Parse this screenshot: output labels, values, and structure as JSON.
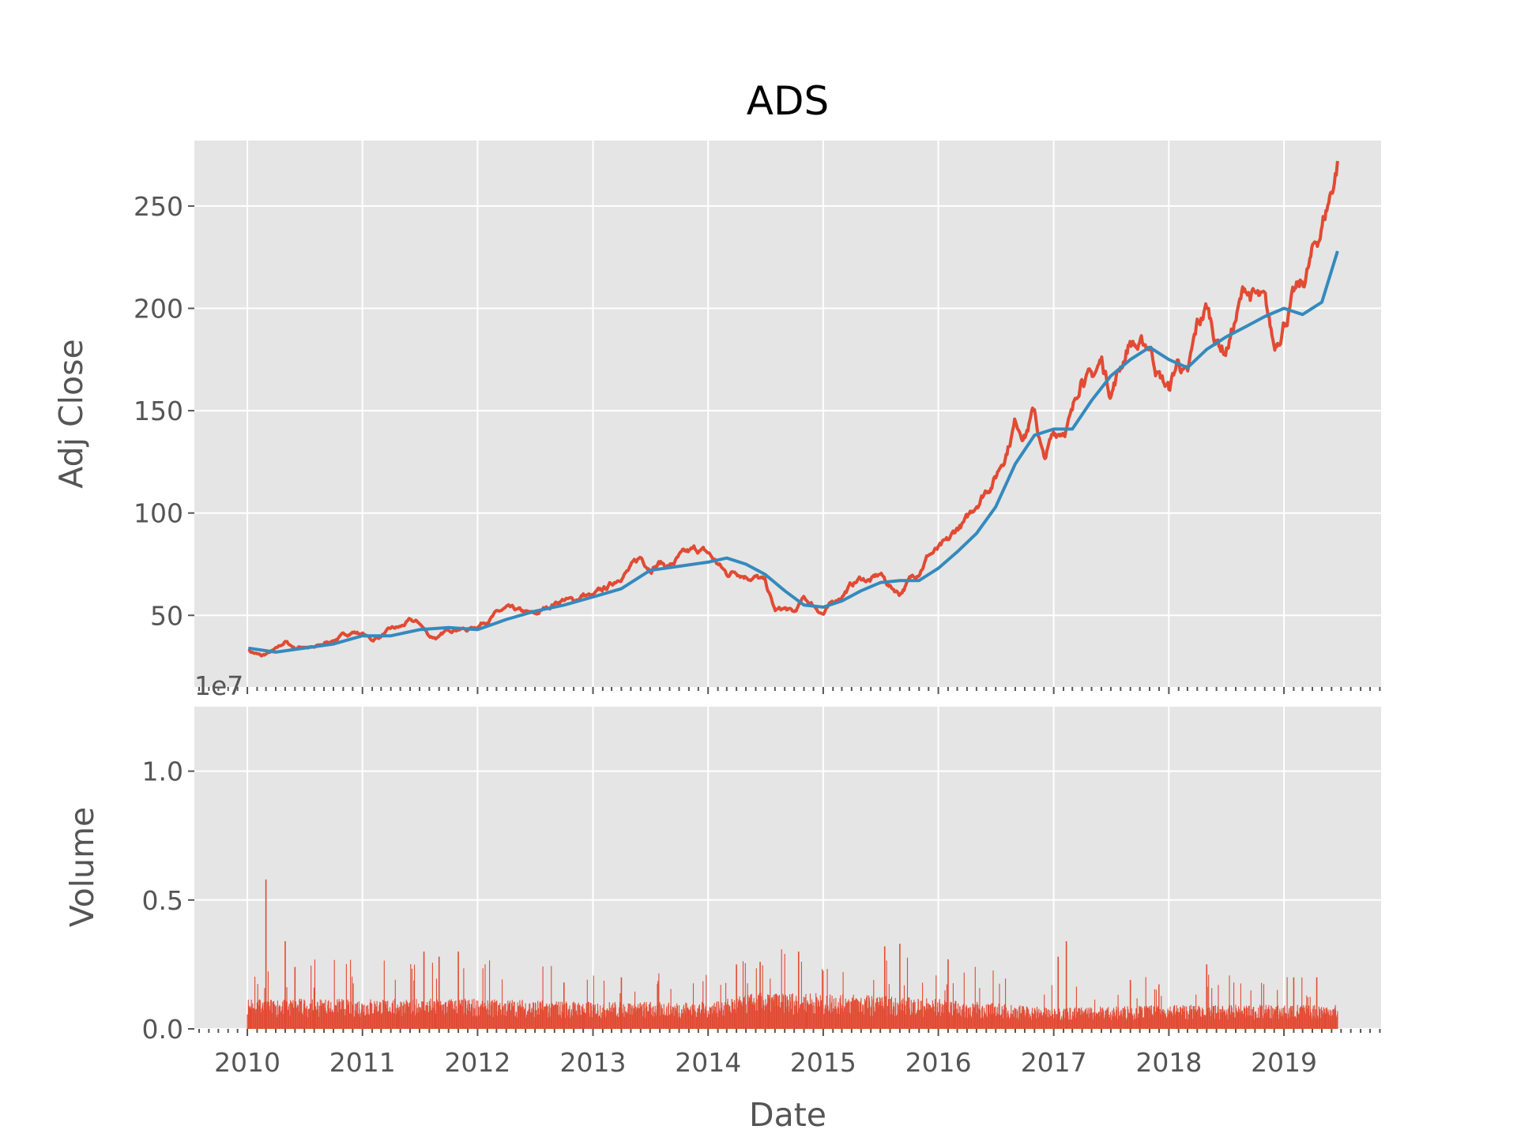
{
  "chart_data": [
    {
      "type": "line",
      "title": "ADS",
      "xlabel": "",
      "ylabel": "Adj Close",
      "xlim": [
        "2009-07-17",
        "2019-11-05"
      ],
      "ylim": [
        15,
        282
      ],
      "yticks": [
        50,
        100,
        150,
        200,
        250
      ],
      "xticks": [
        "2010",
        "2011",
        "2012",
        "2013",
        "2014",
        "2015",
        "2016",
        "2017",
        "2018",
        "2019"
      ],
      "grid": true,
      "series": [
        {
          "color": "#e24a33",
          "points": [
            [
              "2010-01-04",
              33
            ],
            [
              "2010-02-15",
              30
            ],
            [
              "2010-04-01",
              33
            ],
            [
              "2010-05-01",
              37
            ],
            [
              "2010-06-01",
              34
            ],
            [
              "2010-07-01",
              35
            ],
            [
              "2010-08-01",
              34
            ],
            [
              "2010-09-01",
              36
            ],
            [
              "2010-10-01",
              38
            ],
            [
              "2010-11-01",
              40
            ],
            [
              "2010-12-01",
              42
            ],
            [
              "2011-01-01",
              41
            ],
            [
              "2011-02-01",
              38
            ],
            [
              "2011-03-01",
              40
            ],
            [
              "2011-04-01",
              43
            ],
            [
              "2011-05-01",
              44
            ],
            [
              "2011-06-01",
              47
            ],
            [
              "2011-07-01",
              46
            ],
            [
              "2011-08-01",
              40
            ],
            [
              "2011-09-01",
              39
            ],
            [
              "2011-10-01",
              43
            ],
            [
              "2011-11-01",
              44
            ],
            [
              "2011-12-01",
              43
            ],
            [
              "2012-01-01",
              45
            ],
            [
              "2012-02-01",
              48
            ],
            [
              "2012-03-01",
              51
            ],
            [
              "2012-04-01",
              53
            ],
            [
              "2012-05-01",
              52
            ],
            [
              "2012-06-01",
              51
            ],
            [
              "2012-07-01",
              50
            ],
            [
              "2012-08-01",
              53
            ],
            [
              "2012-09-01",
              56
            ],
            [
              "2012-10-01",
              58
            ],
            [
              "2012-11-01",
              57
            ],
            [
              "2012-12-01",
              60
            ],
            [
              "2013-01-01",
              59
            ],
            [
              "2013-02-01",
              62
            ],
            [
              "2013-03-01",
              65
            ],
            [
              "2013-04-01",
              70
            ],
            [
              "2013-05-01",
              73
            ],
            [
              "2013-06-01",
              78
            ],
            [
              "2013-07-01",
              74
            ],
            [
              "2013-08-01",
              76
            ],
            [
              "2013-09-01",
              74
            ],
            [
              "2013-10-01",
              78
            ],
            [
              "2013-11-01",
              80
            ],
            [
              "2013-12-01",
              82
            ],
            [
              "2014-01-01",
              80
            ],
            [
              "2014-02-01",
              75
            ],
            [
              "2014-03-01",
              70
            ],
            [
              "2014-04-01",
              72
            ],
            [
              "2014-05-01",
              70
            ],
            [
              "2014-06-01",
              69
            ],
            [
              "2014-07-01",
              66
            ],
            [
              "2014-08-01",
              52
            ],
            [
              "2014-09-01",
              53
            ],
            [
              "2014-10-01",
              51
            ],
            [
              "2014-11-01",
              58
            ],
            [
              "2014-12-01",
              55
            ],
            [
              "2015-01-01",
              51
            ],
            [
              "2015-02-01",
              56
            ],
            [
              "2015-03-01",
              60
            ],
            [
              "2015-04-01",
              65
            ],
            [
              "2015-05-01",
              68
            ],
            [
              "2015-06-01",
              67
            ],
            [
              "2015-07-01",
              70
            ],
            [
              "2015-08-01",
              64
            ],
            [
              "2015-09-01",
              61
            ],
            [
              "2015-10-01",
              67
            ],
            [
              "2015-11-01",
              72
            ],
            [
              "2015-12-01",
              80
            ],
            [
              "2016-01-01",
              82
            ],
            [
              "2016-02-01",
              85
            ],
            [
              "2016-03-01",
              92
            ],
            [
              "2016-04-01",
              96
            ],
            [
              "2016-05-01",
              105
            ],
            [
              "2016-06-01",
              112
            ],
            [
              "2016-07-01",
              118
            ],
            [
              "2016-08-01",
              130
            ],
            [
              "2016-09-01",
              145
            ],
            [
              "2016-10-01",
              140
            ],
            [
              "2016-11-01",
              150
            ],
            [
              "2016-12-01",
              125
            ],
            [
              "2017-01-01",
              138
            ],
            [
              "2017-02-01",
              142
            ],
            [
              "2017-03-01",
              148
            ],
            [
              "2017-04-01",
              170
            ],
            [
              "2017-05-01",
              165
            ],
            [
              "2017-06-01",
              174
            ],
            [
              "2017-07-01",
              160
            ],
            [
              "2017-08-01",
              172
            ],
            [
              "2017-09-01",
              185
            ],
            [
              "2017-10-01",
              180
            ],
            [
              "2017-11-01",
              182
            ],
            [
              "2017-12-01",
              168
            ],
            [
              "2018-01-01",
              160
            ],
            [
              "2018-02-01",
              175
            ],
            [
              "2018-03-01",
              165
            ],
            [
              "2018-04-01",
              190
            ],
            [
              "2018-05-01",
              200
            ],
            [
              "2018-06-01",
              185
            ],
            [
              "2018-07-01",
              180
            ],
            [
              "2018-08-01",
              195
            ],
            [
              "2018-09-01",
              210
            ],
            [
              "2018-10-01",
              205
            ],
            [
              "2018-11-01",
              200
            ],
            [
              "2018-12-01",
              180
            ],
            [
              "2019-01-01",
              195
            ],
            [
              "2019-02-01",
              205
            ],
            [
              "2019-03-01",
              210
            ],
            [
              "2019-04-01",
              225
            ],
            [
              "2019-05-01",
              240
            ],
            [
              "2019-06-01",
              258
            ],
            [
              "2019-06-20",
              272
            ]
          ]
        },
        {
          "color": "#348abd",
          "points": [
            [
              "2010-01-04",
              34
            ],
            [
              "2010-04-01",
              32
            ],
            [
              "2010-07-01",
              34
            ],
            [
              "2010-10-01",
              36
            ],
            [
              "2011-01-01",
              40
            ],
            [
              "2011-04-01",
              40
            ],
            [
              "2011-07-01",
              43
            ],
            [
              "2011-10-01",
              44
            ],
            [
              "2012-01-01",
              43
            ],
            [
              "2012-04-01",
              48
            ],
            [
              "2012-07-01",
              52
            ],
            [
              "2012-10-01",
              55
            ],
            [
              "2013-01-01",
              59
            ],
            [
              "2013-04-01",
              63
            ],
            [
              "2013-07-01",
              72
            ],
            [
              "2013-10-01",
              74
            ],
            [
              "2014-01-01",
              76
            ],
            [
              "2014-03-01",
              78
            ],
            [
              "2014-05-01",
              75
            ],
            [
              "2014-07-01",
              70
            ],
            [
              "2014-09-01",
              62
            ],
            [
              "2014-11-01",
              55
            ],
            [
              "2015-01-01",
              54
            ],
            [
              "2015-03-01",
              57
            ],
            [
              "2015-05-01",
              62
            ],
            [
              "2015-07-01",
              66
            ],
            [
              "2015-09-01",
              67
            ],
            [
              "2015-11-01",
              67
            ],
            [
              "2016-01-01",
              73
            ],
            [
              "2016-03-01",
              81
            ],
            [
              "2016-05-01",
              90
            ],
            [
              "2016-07-01",
              103
            ],
            [
              "2016-09-01",
              124
            ],
            [
              "2016-11-01",
              138
            ],
            [
              "2017-01-01",
              141
            ],
            [
              "2017-03-01",
              141
            ],
            [
              "2017-05-01",
              155
            ],
            [
              "2017-07-01",
              167
            ],
            [
              "2017-09-01",
              175
            ],
            [
              "2017-11-01",
              181
            ],
            [
              "2018-01-01",
              175
            ],
            [
              "2018-03-01",
              171
            ],
            [
              "2018-05-01",
              180
            ],
            [
              "2018-07-01",
              186
            ],
            [
              "2018-09-01",
              191
            ],
            [
              "2018-11-01",
              196
            ],
            [
              "2019-01-01",
              200
            ],
            [
              "2019-03-01",
              197
            ],
            [
              "2019-05-01",
              203
            ],
            [
              "2019-06-20",
              228
            ]
          ]
        }
      ]
    },
    {
      "type": "bar",
      "title": "",
      "xlabel": "Date",
      "ylabel": "Volume",
      "offset_label": "1e7",
      "xlim": [
        "2009-07-17",
        "2019-11-05"
      ],
      "ylim": [
        0,
        1.25
      ],
      "yticks": [
        "0.0",
        "0.5",
        "1.0"
      ],
      "ytick_values": [
        0,
        0.5,
        1.0
      ],
      "xticks": [
        "2010",
        "2011",
        "2012",
        "2013",
        "2014",
        "2015",
        "2016",
        "2017",
        "2018",
        "2019"
      ],
      "grid": true,
      "color": "#e24a33",
      "baseline": [
        [
          "2010-01-01",
          0.1
        ],
        [
          "2011-01-01",
          0.1
        ],
        [
          "2012-01-01",
          0.1
        ],
        [
          "2013-01-01",
          0.09
        ],
        [
          "2014-01-01",
          0.09
        ],
        [
          "2014-06-01",
          0.12
        ],
        [
          "2015-01-01",
          0.12
        ],
        [
          "2016-01-01",
          0.1
        ],
        [
          "2017-01-01",
          0.07
        ],
        [
          "2018-01-01",
          0.08
        ],
        [
          "2019-01-01",
          0.08
        ],
        [
          "2019-06-20",
          0.08
        ]
      ],
      "spikes": [
        [
          "2010-03-01",
          0.58
        ],
        [
          "2010-05-01",
          0.34
        ],
        [
          "2010-06-01",
          0.24
        ],
        [
          "2010-08-01",
          0.16
        ],
        [
          "2011-07-15",
          0.3
        ],
        [
          "2011-09-01",
          0.28
        ],
        [
          "2011-11-01",
          0.3
        ],
        [
          "2012-10-01",
          0.18
        ],
        [
          "2013-04-01",
          0.2
        ],
        [
          "2014-04-01",
          0.25
        ],
        [
          "2014-06-15",
          0.26
        ],
        [
          "2014-10-15",
          0.3
        ],
        [
          "2015-07-15",
          0.32
        ],
        [
          "2015-09-01",
          0.33
        ],
        [
          "2016-02-01",
          0.27
        ],
        [
          "2017-01-15",
          0.28
        ],
        [
          "2017-02-10",
          0.34
        ],
        [
          "2017-09-01",
          0.19
        ],
        [
          "2018-05-01",
          0.25
        ],
        [
          "2019-02-01",
          0.2
        ],
        [
          "2019-04-15",
          0.2
        ]
      ]
    }
  ]
}
